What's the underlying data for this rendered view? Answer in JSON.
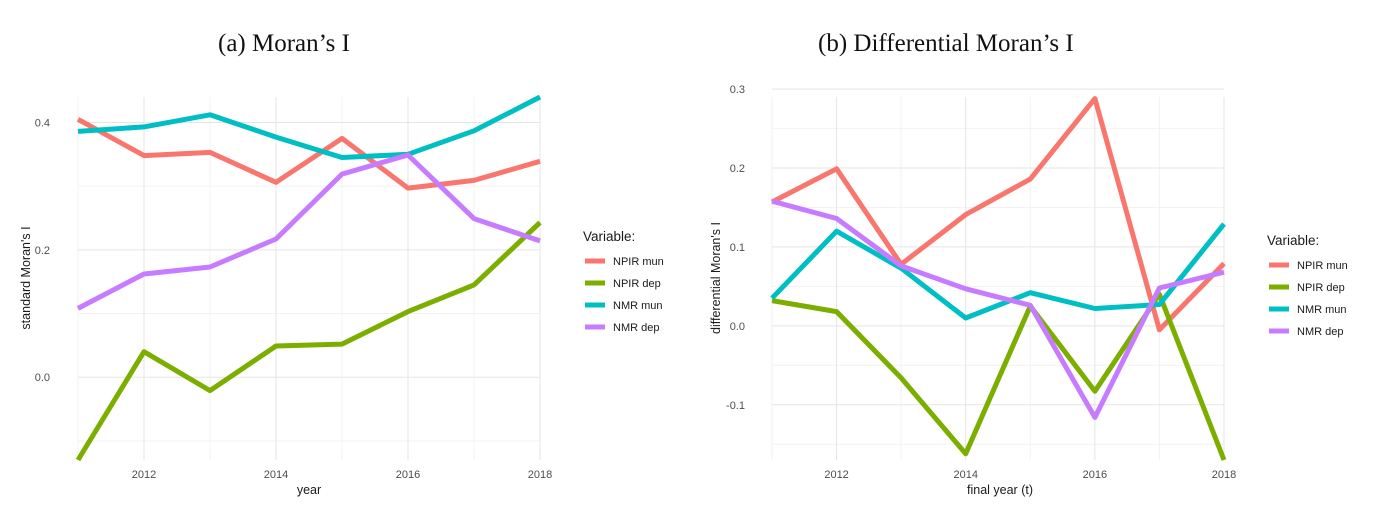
{
  "titles": {
    "a": "(a) Moran’s I",
    "b": "(b) Differential Moran’s I"
  },
  "colors": {
    "NPIR mun": "#F8766D",
    "NPIR dep": "#7CAE00",
    "NMR mun": "#00BFC4",
    "NMR dep": "#C77CFF"
  },
  "chart_data": [
    {
      "type": "line",
      "title": "(a) Moran’s I",
      "xlabel": "year",
      "ylabel": "standard Moran's I",
      "x": [
        2011,
        2012,
        2013,
        2014,
        2015,
        2016,
        2017,
        2018
      ],
      "xlim": [
        2011,
        2018
      ],
      "ylim": [
        -0.13,
        0.44
      ],
      "xticks": [
        "2012",
        "2014",
        "2016",
        "2018"
      ],
      "yticks": [
        "0.0",
        "0.2",
        "0.4"
      ],
      "grid": true,
      "legend": {
        "title": "Variable:",
        "position": "right"
      },
      "series": [
        {
          "name": "NPIR mun",
          "values": [
            0.405,
            0.348,
            0.353,
            0.306,
            0.375,
            0.297,
            0.309,
            0.339
          ]
        },
        {
          "name": "NPIR dep",
          "values": [
            -0.13,
            0.04,
            -0.021,
            0.049,
            0.052,
            0.103,
            0.145,
            0.243
          ]
        },
        {
          "name": "NMR mun",
          "values": [
            0.386,
            0.393,
            0.412,
            0.377,
            0.345,
            0.35,
            0.387,
            0.44
          ]
        },
        {
          "name": "NMR dep",
          "values": [
            0.108,
            0.162,
            0.173,
            0.217,
            0.319,
            0.349,
            0.249,
            0.214
          ]
        }
      ]
    },
    {
      "type": "line",
      "title": "(b) Differential Moran’s I",
      "xlabel": "final year (t)",
      "ylabel": "differential  Moran's I",
      "x": [
        2011,
        2012,
        2013,
        2014,
        2015,
        2016,
        2017,
        2018
      ],
      "xlim": [
        2011,
        2018
      ],
      "ylim": [
        -0.17,
        0.29
      ],
      "xticks": [
        "2012",
        "2014",
        "2016",
        "2018"
      ],
      "yticks": [
        "-0.1",
        "0.0",
        "0.1",
        "0.2",
        "0.3"
      ],
      "grid": true,
      "legend": {
        "title": "Variable:",
        "position": "right"
      },
      "series": [
        {
          "name": "NPIR mun",
          "values": [
            0.157,
            0.199,
            0.078,
            0.141,
            0.186,
            0.288,
            -0.005,
            0.079
          ]
        },
        {
          "name": "NPIR dep",
          "values": [
            0.032,
            0.018,
            -0.066,
            -0.162,
            0.025,
            -0.083,
            0.04,
            -0.17
          ]
        },
        {
          "name": "NMR mun",
          "values": [
            0.035,
            0.12,
            0.073,
            0.01,
            0.042,
            0.022,
            0.027,
            0.129
          ]
        },
        {
          "name": "NMR dep",
          "values": [
            0.158,
            0.136,
            0.076,
            0.047,
            0.026,
            -0.116,
            0.048,
            0.068
          ]
        }
      ]
    }
  ]
}
